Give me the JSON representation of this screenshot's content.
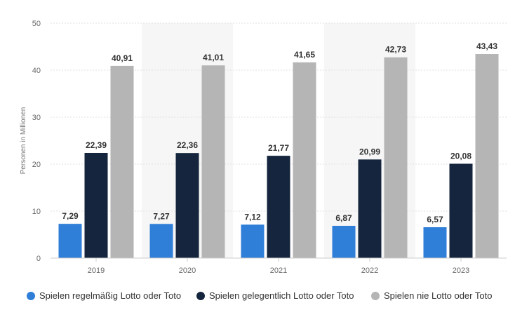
{
  "chart_data": {
    "type": "bar",
    "title": "",
    "xlabel": "",
    "ylabel": "Personen in Millionen",
    "ylim": [
      0,
      50
    ],
    "yticks": [
      0,
      10,
      20,
      30,
      40,
      50
    ],
    "grid": true,
    "legend_position": "bottom",
    "categories": [
      "2019",
      "2020",
      "2021",
      "2022",
      "2023"
    ],
    "series": [
      {
        "name": "Spielen regelmäßig Lotto oder Toto",
        "color": "#2f7ed8",
        "values": [
          7.29,
          7.27,
          7.12,
          6.87,
          6.57
        ],
        "labels": [
          "7,29",
          "7,27",
          "7,12",
          "6,87",
          "6,57"
        ]
      },
      {
        "name": "Spielen gelegentlich Lotto oder Toto",
        "color": "#14253d",
        "values": [
          22.39,
          22.36,
          21.77,
          20.99,
          20.08
        ],
        "labels": [
          "22,39",
          "22,36",
          "21,77",
          "20,99",
          "20,08"
        ]
      },
      {
        "name": "Spielen nie Lotto oder Toto",
        "color": "#b5b5b5",
        "values": [
          40.91,
          41.01,
          41.65,
          42.73,
          43.43
        ],
        "labels": [
          "40,91",
          "41,01",
          "41,65",
          "42,73",
          "43,43"
        ]
      }
    ]
  }
}
